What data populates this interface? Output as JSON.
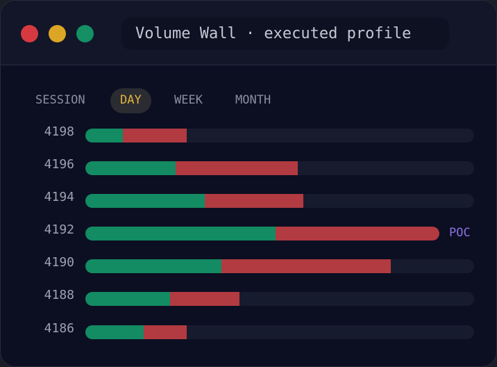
{
  "window": {
    "title": "Volume Wall · executed profile",
    "traffic_lights": [
      {
        "name": "close",
        "color": "#d63a40"
      },
      {
        "name": "minimize",
        "color": "#dba625"
      },
      {
        "name": "zoom",
        "color": "#149064"
      }
    ]
  },
  "tabs": [
    {
      "label": "SESSION",
      "active": false
    },
    {
      "label": "DAY",
      "active": true
    },
    {
      "label": "WEEK",
      "active": false
    },
    {
      "label": "MONTH",
      "active": false
    }
  ],
  "colors": {
    "buy": "#138b63",
    "sell": "#b23a41",
    "track": "#171b2e",
    "poc": "#8f6ee6",
    "active_tab": "#e2b43c"
  },
  "profile": {
    "poc_label": "POC",
    "scale_max": 560,
    "levels": [
      {
        "price": "4198",
        "buy": 54,
        "sell": 92,
        "poc": false
      },
      {
        "price": "4196",
        "buy": 130,
        "sell": 176,
        "poc": false
      },
      {
        "price": "4194",
        "buy": 172,
        "sell": 142,
        "poc": false
      },
      {
        "price": "4192",
        "buy": 274,
        "sell": 236,
        "poc": true
      },
      {
        "price": "4190",
        "buy": 196,
        "sell": 244,
        "poc": false
      },
      {
        "price": "4188",
        "buy": 122,
        "sell": 100,
        "poc": false
      },
      {
        "price": "4186",
        "buy": 84,
        "sell": 62,
        "poc": false
      }
    ]
  }
}
